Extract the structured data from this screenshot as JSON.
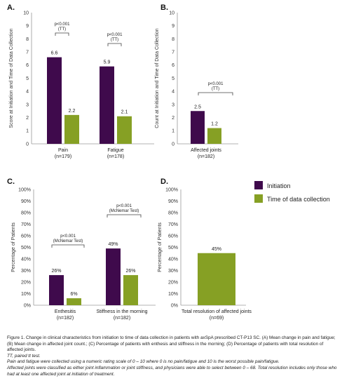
{
  "colors": {
    "initiation": "#3f0a4c",
    "collection": "#86a024",
    "axis": "#9a9a9a",
    "text": "#222222"
  },
  "legend": {
    "items": [
      "Initiation",
      "Time of data collection"
    ],
    "placement": "right of panel D"
  },
  "chart_data": [
    {
      "panel": "A.",
      "type": "bar",
      "ylabel": "Score at Initiation and Time of Data Collection",
      "yticks": [
        "0",
        "1",
        "2",
        "3",
        "4",
        "5",
        "6",
        "7",
        "8",
        "9",
        "10"
      ],
      "ylim": [
        0,
        10
      ],
      "categories": [
        "Pain\n(n=179)",
        "Fatigue\n(n=178)"
      ],
      "series": [
        {
          "name": "Initiation",
          "values": [
            6.6,
            5.9
          ],
          "labels": [
            "6.6",
            "5.9"
          ]
        },
        {
          "name": "Time of data collection",
          "values": [
            2.2,
            2.1
          ],
          "labels": [
            "2.2",
            "2.1"
          ]
        }
      ],
      "annotations": [
        "p<0.001\n(TT)",
        "p<0.001\n(TT)"
      ]
    },
    {
      "panel": "B.",
      "type": "bar",
      "ylabel": "Count at Initiation and Time of Data Collection",
      "yticks": [
        "0",
        "1",
        "2",
        "3",
        "4",
        "5",
        "6",
        "7",
        "8",
        "9",
        "10"
      ],
      "ylim": [
        0,
        10
      ],
      "categories": [
        "Affected joints\n(n=182)"
      ],
      "series": [
        {
          "name": "Initiation",
          "values": [
            2.5
          ],
          "labels": [
            "2.5"
          ]
        },
        {
          "name": "Time of data collection",
          "values": [
            1.2
          ],
          "labels": [
            "1.2"
          ]
        }
      ],
      "annotations": [
        "p<0.001\n(TT)"
      ]
    },
    {
      "panel": "C.",
      "type": "bar",
      "ylabel": "Percentage of Patients",
      "yticks": [
        "0%",
        "10%",
        "20%",
        "30%",
        "40%",
        "50%",
        "60%",
        "70%",
        "80%",
        "90%",
        "100%"
      ],
      "ylim": [
        0,
        100
      ],
      "categories": [
        "Enthesitis\n(n=182)",
        "Stiffness in the morning\n(n=182)"
      ],
      "series": [
        {
          "name": "Initiation",
          "values": [
            26,
            49
          ],
          "labels": [
            "26%",
            "49%"
          ]
        },
        {
          "name": "Time of data collection",
          "values": [
            6,
            26
          ],
          "labels": [
            "6%",
            "26%"
          ]
        }
      ],
      "annotations": [
        "p<0.001\n(McNemar Test)",
        "p<0.001\n(McNemar Test)"
      ]
    },
    {
      "panel": "D.",
      "type": "bar",
      "ylabel": "Percentage of Patients",
      "yticks": [
        "0%",
        "10%",
        "20%",
        "30%",
        "40%",
        "50%",
        "60%",
        "70%",
        "80%",
        "90%",
        "100%"
      ],
      "ylim": [
        0,
        100
      ],
      "categories": [
        "Total resolution of affected joints\n(n=69)"
      ],
      "series": [
        {
          "values": [
            45
          ],
          "labels": [
            "45%"
          ]
        }
      ],
      "annotations": []
    }
  ],
  "caption": {
    "main": "Figure 1. Change in clinical characteristics  from initiation  to time of data collection  in patients with axSpA prescribed  CT-P13 SC. (A) Mean change in pain and fatigue; (B) Mean change in affected joint count.; (C) Percentage of patients with enthesis and stiffness in the morning; (D) Percentage of patients with total resolution of affected joints.",
    "abbr": "TT,  paired tt test.",
    "note1": "Pain and fatigue were collected using a numeric rating scale of 0 – 10 where 0 is no pain/fatigue and 10 is the worst possible pain/fatigue.",
    "note2": "Affected joints were classified as either joint inflammation or joint stiffness, and physicians were able to select between 0 – 68. Total resolution includes only those who had at least one affected joint at initiation of treatment."
  }
}
